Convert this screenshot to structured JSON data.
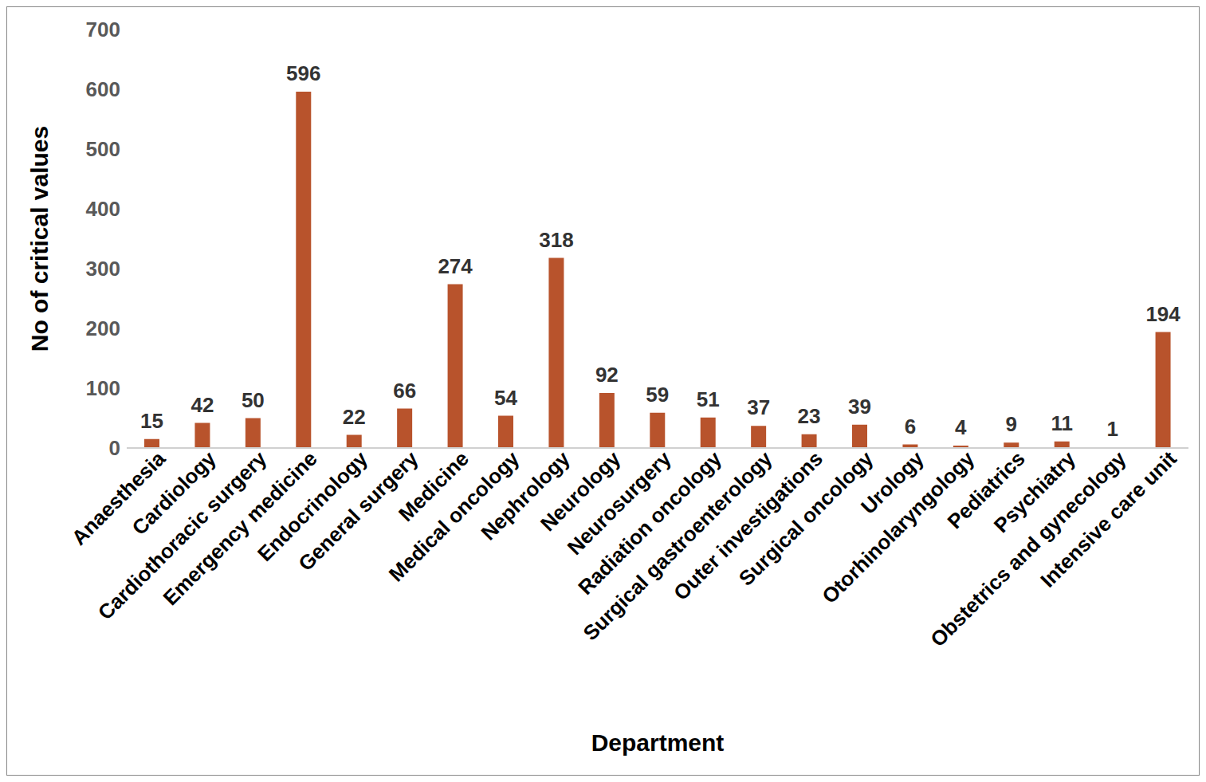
{
  "chart_data": {
    "type": "bar",
    "x_label": "Department",
    "y_label": "No of critical values",
    "categories": [
      "Anaesthesia",
      "Cardiology",
      "Cardiothoracic surgery",
      "Emergency medicine",
      "Endocrinology",
      "General surgery",
      "Medicine",
      "Medical oncology",
      "Nephrology",
      "Neurology",
      "Neurosurgery",
      "Radiation oncology",
      "Surgical gastroenterology",
      "Outer investigations",
      "Surgical oncology",
      "Urology",
      "Otorhinolaryngology",
      "Pediatrics",
      "Psychiatry",
      "Obstetrics and gynecology",
      "Intensive care unit"
    ],
    "values": [
      15,
      42,
      50,
      596,
      22,
      66,
      274,
      54,
      318,
      92,
      59,
      51,
      37,
      23,
      39,
      6,
      4,
      9,
      11,
      1,
      194
    ],
    "color": "#b8532c",
    "ylim": [
      0,
      700
    ],
    "yticks": [
      0,
      100,
      200,
      300,
      400,
      500,
      600,
      700
    ],
    "grid": false,
    "data_labels": true
  }
}
